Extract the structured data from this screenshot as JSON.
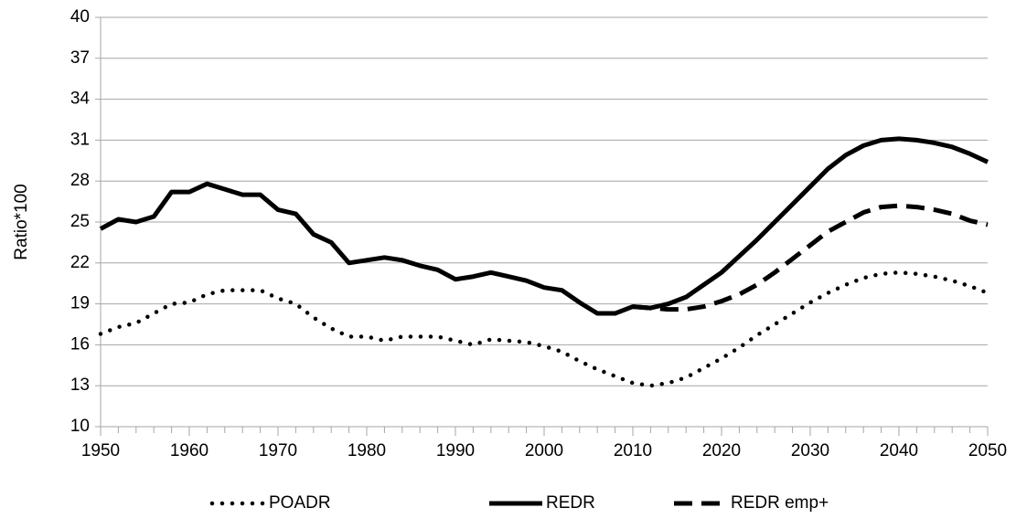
{
  "chart_data": {
    "type": "line",
    "y_label": "Ratio*100",
    "x": [
      1950,
      1952,
      1954,
      1956,
      1958,
      1960,
      1962,
      1964,
      1966,
      1968,
      1970,
      1972,
      1974,
      1976,
      1978,
      1980,
      1982,
      1984,
      1986,
      1988,
      1990,
      1992,
      1994,
      1996,
      1998,
      2000,
      2002,
      2004,
      2006,
      2008,
      2010,
      2012,
      2014,
      2016,
      2018,
      2020,
      2022,
      2024,
      2026,
      2028,
      2030,
      2032,
      2034,
      2036,
      2038,
      2040,
      2042,
      2044,
      2046,
      2048,
      2050
    ],
    "series": [
      {
        "name": "POADR",
        "color": "#000000",
        "style": "dotted",
        "values": [
          16.8,
          17.3,
          17.6,
          18.3,
          19.0,
          19.1,
          19.7,
          20.0,
          20.0,
          20.0,
          19.4,
          19.0,
          18.0,
          17.2,
          16.6,
          16.6,
          16.3,
          16.6,
          16.6,
          16.6,
          16.3,
          16.0,
          16.4,
          16.3,
          16.2,
          15.9,
          15.5,
          14.8,
          14.2,
          13.7,
          13.2,
          13.0,
          13.2,
          13.6,
          14.3,
          15.0,
          15.8,
          16.7,
          17.5,
          18.3,
          19.1,
          19.8,
          20.4,
          20.9,
          21.2,
          21.3,
          21.2,
          21.0,
          20.7,
          20.3,
          19.8
        ]
      },
      {
        "name": "REDR",
        "color": "#000000",
        "style": "solid",
        "values": [
          24.5,
          25.2,
          25.0,
          25.4,
          27.2,
          27.2,
          27.8,
          27.4,
          27.0,
          27.0,
          25.9,
          25.6,
          24.1,
          23.5,
          22.0,
          22.2,
          22.4,
          22.2,
          21.8,
          21.5,
          20.8,
          21.0,
          21.3,
          21.0,
          20.7,
          20.2,
          20.0,
          19.1,
          18.3,
          18.3,
          18.8,
          18.7,
          19.0,
          19.5,
          20.4,
          21.3,
          22.5,
          23.7,
          25.0,
          26.3,
          27.6,
          28.9,
          29.9,
          30.6,
          31.0,
          31.1,
          31.0,
          30.8,
          30.5,
          30.0,
          29.4
        ]
      },
      {
        "name": "REDR emp+",
        "color": "#000000",
        "style": "dashed",
        "values": [
          null,
          null,
          null,
          null,
          null,
          null,
          null,
          null,
          null,
          null,
          null,
          null,
          null,
          null,
          null,
          null,
          null,
          null,
          null,
          null,
          null,
          null,
          null,
          null,
          null,
          null,
          null,
          null,
          null,
          null,
          18.8,
          18.7,
          18.6,
          18.6,
          18.8,
          19.2,
          19.7,
          20.4,
          21.3,
          22.3,
          23.3,
          24.3,
          25.0,
          25.7,
          26.1,
          26.2,
          26.1,
          25.9,
          25.6,
          25.1,
          24.8
        ]
      }
    ],
    "xlim": [
      1950,
      2050
    ],
    "xticks": [
      1950,
      1960,
      1970,
      1980,
      1990,
      2000,
      2010,
      2020,
      2030,
      2040,
      2050
    ],
    "ylim": [
      10,
      40
    ],
    "yticks": [
      10,
      13,
      16,
      19,
      22,
      25,
      28,
      31,
      34,
      37,
      40
    ],
    "grid": true,
    "legend": "bottom"
  }
}
